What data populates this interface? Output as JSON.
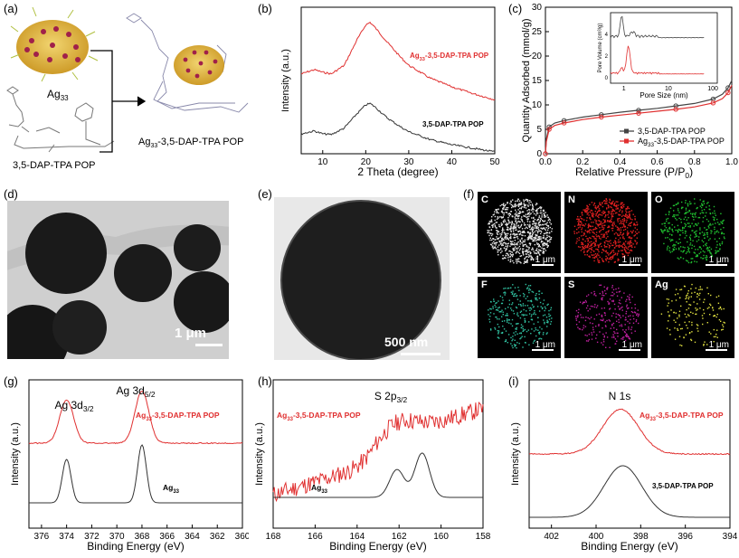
{
  "panel_labels": {
    "a": "(a)",
    "b": "(b)",
    "c": "(c)",
    "d": "(d)",
    "e": "(e)",
    "f": "(f)",
    "g": "(g)",
    "h": "(h)",
    "i": "(i)"
  },
  "panel_a": {
    "cluster_label": "Ag",
    "cluster_sub": "33",
    "pop_label": "3,5-DAP-TPA POP",
    "composite_prefix": "Ag",
    "composite_sub": "33",
    "composite_suffix": "-3,5-DAP-TPA POP"
  },
  "panel_d": {
    "scale": "1 μm"
  },
  "panel_e": {
    "scale": "500 nm"
  },
  "panel_f": {
    "tiles": [
      {
        "element": "C",
        "scale": "1 μm",
        "color": "#e6e6e6"
      },
      {
        "element": "N",
        "scale": "1 μm",
        "color": "#e02020"
      },
      {
        "element": "O",
        "scale": "1 μm",
        "color": "#20c030"
      },
      {
        "element": "F",
        "scale": "1 μm",
        "color": "#30c0a0"
      },
      {
        "element": "S",
        "scale": "1 μm",
        "color": "#c020a0"
      },
      {
        "element": "Ag",
        "scale": "1 μm",
        "color": "#e0e040"
      }
    ]
  },
  "colors": {
    "red": "#e03030",
    "black": "#333333",
    "gray": "#555555"
  },
  "chart_data": [
    {
      "panel": "b",
      "type": "line",
      "xlabel": "2 Theta (degree)",
      "ylabel": "Intensity (a.u.)",
      "xlim": [
        5,
        50
      ],
      "ticks": [
        "10",
        "20",
        "30",
        "40",
        "50"
      ],
      "series": [
        {
          "name": "Ag33-3,5-DAP-TPA POP",
          "label_prefix": "Ag",
          "label_sub": "33",
          "label_suffix": "-3,5-DAP-TPA POP",
          "offset": 0.75,
          "x": [
            5,
            8,
            10,
            12,
            15,
            18,
            20,
            21,
            22,
            25,
            28,
            30,
            35,
            40,
            45,
            50
          ],
          "y": [
            0.35,
            0.4,
            0.37,
            0.35,
            0.45,
            0.75,
            0.92,
            0.95,
            0.9,
            0.72,
            0.55,
            0.45,
            0.3,
            0.2,
            0.12,
            0.05
          ]
        },
        {
          "name": "3,5-DAP-TPA POP",
          "offset": 0.0,
          "x": [
            5,
            8,
            10,
            12,
            15,
            18,
            20,
            21,
            22,
            25,
            28,
            30,
            35,
            40,
            45,
            50
          ],
          "y": [
            0.3,
            0.34,
            0.3,
            0.29,
            0.38,
            0.58,
            0.7,
            0.72,
            0.68,
            0.52,
            0.4,
            0.33,
            0.22,
            0.15,
            0.1,
            0.05
          ]
        }
      ]
    },
    {
      "panel": "c",
      "type": "line",
      "xlabel": "Relative Pressure (P/P",
      "xlabel_sub": "0",
      "xlabel_end": ")",
      "ylabel": "Quantity Adsorbed (mmol/g)",
      "xlim": [
        0,
        1
      ],
      "ylim": [
        0,
        30
      ],
      "xticks": [
        "0.0",
        "0.2",
        "0.4",
        "0.6",
        "0.8",
        "1.0"
      ],
      "yticks": [
        "0",
        "5",
        "10",
        "15",
        "20",
        "25",
        "30"
      ],
      "series": [
        {
          "name": "3,5-DAP-TPA POP",
          "x": [
            0,
            0.005,
            0.02,
            0.05,
            0.1,
            0.2,
            0.3,
            0.4,
            0.5,
            0.6,
            0.7,
            0.8,
            0.9,
            0.95,
            0.98,
            1.0
          ],
          "y": [
            0,
            3,
            5.5,
            6.3,
            6.8,
            7.5,
            8,
            8.5,
            8.9,
            9.3,
            9.8,
            10.3,
            11.2,
            12.2,
            13.5,
            15
          ]
        },
        {
          "name": "Ag33-3,5-DAP-TPA POP",
          "label_prefix": "Ag",
          "label_sub": "33",
          "label_suffix": "-3,5-DAP-TPA POP",
          "x": [
            0,
            0.005,
            0.02,
            0.05,
            0.1,
            0.2,
            0.3,
            0.4,
            0.5,
            0.6,
            0.7,
            0.8,
            0.9,
            0.95,
            0.98,
            1.0
          ],
          "y": [
            0,
            2.5,
            5,
            5.8,
            6.3,
            7,
            7.5,
            7.9,
            8.3,
            8.7,
            9.1,
            9.6,
            10.4,
            11.3,
            12.5,
            14
          ]
        }
      ],
      "inset": {
        "xlabel": "Pore Size (nm)",
        "ylabel": "Pore Volume (cm³/g)",
        "xticks": [
          "1",
          "10",
          "100"
        ],
        "yticks": [
          "0",
          "2",
          "4"
        ]
      }
    },
    {
      "panel": "g",
      "type": "line",
      "xlabel": "Binding Energy (eV)",
      "ylabel": "Intensity (a.u.)",
      "xlim": [
        377,
        360
      ],
      "ticks": [
        "376",
        "374",
        "372",
        "370",
        "368",
        "366",
        "364",
        "362",
        "360"
      ],
      "peak_labels": [
        {
          "text": "Ag 3d",
          "sub": "3/2"
        },
        {
          "text": "Ag 3d",
          "sub": "5/2"
        }
      ],
      "series": [
        {
          "name": "Ag33-3,5-DAP-TPA POP",
          "label_prefix": "Ag",
          "label_sub": "33",
          "label_suffix": "-3,5-DAP-TPA POP",
          "peaks": [
            {
              "c": 374.0,
              "h": 0.3,
              "w": 0.55
            },
            {
              "c": 368.0,
              "h": 0.36,
              "w": 0.55
            }
          ],
          "offset": 0.55
        },
        {
          "name": "Ag33",
          "label_prefix": "Ag",
          "label_sub": "33",
          "peaks": [
            {
              "c": 374.0,
              "h": 0.3,
              "w": 0.35
            },
            {
              "c": 368.0,
              "h": 0.4,
              "w": 0.35
            }
          ],
          "offset": 0.0
        }
      ]
    },
    {
      "panel": "h",
      "type": "line",
      "xlabel": "Binding Energy (eV)",
      "ylabel": "Intensity (a.u.)",
      "xlim": [
        168,
        158
      ],
      "ticks": [
        "168",
        "166",
        "164",
        "162",
        "160",
        "158"
      ],
      "peak_labels": [
        {
          "text": "S 2p",
          "sub": "3/2"
        }
      ],
      "series": [
        {
          "name": "Ag33-3,5-DAP-TPA POP",
          "label_prefix": "Ag",
          "label_sub": "33",
          "label_suffix": "-3,5-DAP-TPA POP",
          "offset": 0.45
        },
        {
          "name": "Ag33",
          "label_prefix": "Ag",
          "label_sub": "33",
          "peaks": [
            {
              "c": 162.1,
              "h": 0.22,
              "w": 0.35
            },
            {
              "c": 160.9,
              "h": 0.35,
              "w": 0.35
            }
          ],
          "offset": 0.0
        }
      ]
    },
    {
      "panel": "i",
      "type": "line",
      "xlabel": "Binding Energy (eV)",
      "ylabel": "Intensity (a.u.)",
      "xlim": [
        403,
        394
      ],
      "ticks": [
        "402",
        "400",
        "398",
        "396",
        "394"
      ],
      "peak_labels": [
        {
          "text": "N 1s"
        }
      ],
      "series": [
        {
          "name": "Ag33-3,5-DAP-TPA POP",
          "label_prefix": "Ag",
          "label_sub": "33",
          "label_suffix": "-3,5-DAP-TPA POP",
          "peaks": [
            {
              "c": 398.9,
              "h": 0.33,
              "w": 0.8
            }
          ],
          "offset": 0.55
        },
        {
          "name": "3,5-DAP-TPA POP",
          "peaks": [
            {
              "c": 398.8,
              "h": 0.38,
              "w": 0.85
            }
          ],
          "offset": 0.0
        }
      ]
    }
  ]
}
